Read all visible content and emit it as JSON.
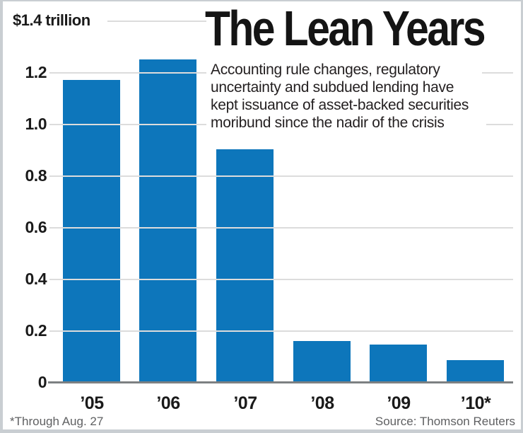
{
  "chart_data": {
    "type": "bar",
    "title": "The Lean Years",
    "subtitle": "Accounting rule changes, regulatory uncertainty and subdued lending have kept issuance of asset-backed securities moribund since the nadir of the crisis",
    "subtitle_lines": [
      "Accounting rule changes, regulatory",
      "uncertainty and subdued lending have",
      "kept issuance of asset-backed securities",
      "moribund since the nadir of the crisis"
    ],
    "y_top_label": "$1.4 trillion",
    "categories": [
      "’05",
      "’06",
      "’07",
      "’08",
      "’09",
      "’10*"
    ],
    "values": [
      1.17,
      1.25,
      0.9,
      0.16,
      0.145,
      0.085
    ],
    "unit": "trillion USD",
    "ylim": [
      0,
      1.4
    ],
    "grid": true,
    "legend": "none",
    "y_ticks": [
      {
        "label": "0",
        "value": 0
      },
      {
        "label": "0.2",
        "value": 0.2
      },
      {
        "label": "0.4",
        "value": 0.4
      },
      {
        "label": "0.6",
        "value": 0.6
      },
      {
        "label": "0.8",
        "value": 0.8
      },
      {
        "label": "1.0",
        "value": 1.0
      },
      {
        "label": "1.2",
        "value": 1.2
      }
    ],
    "footnote": "*Through Aug. 27",
    "source": "Source: Thomson Reuters",
    "colors": {
      "bar": "#0d76bb",
      "gridline": "#dcdcdc",
      "tick": "#9aa0a3",
      "axis": "#7d8082",
      "text": "#1a1a1a",
      "muted": "#5f6062",
      "frame": "#c9ced2"
    }
  }
}
